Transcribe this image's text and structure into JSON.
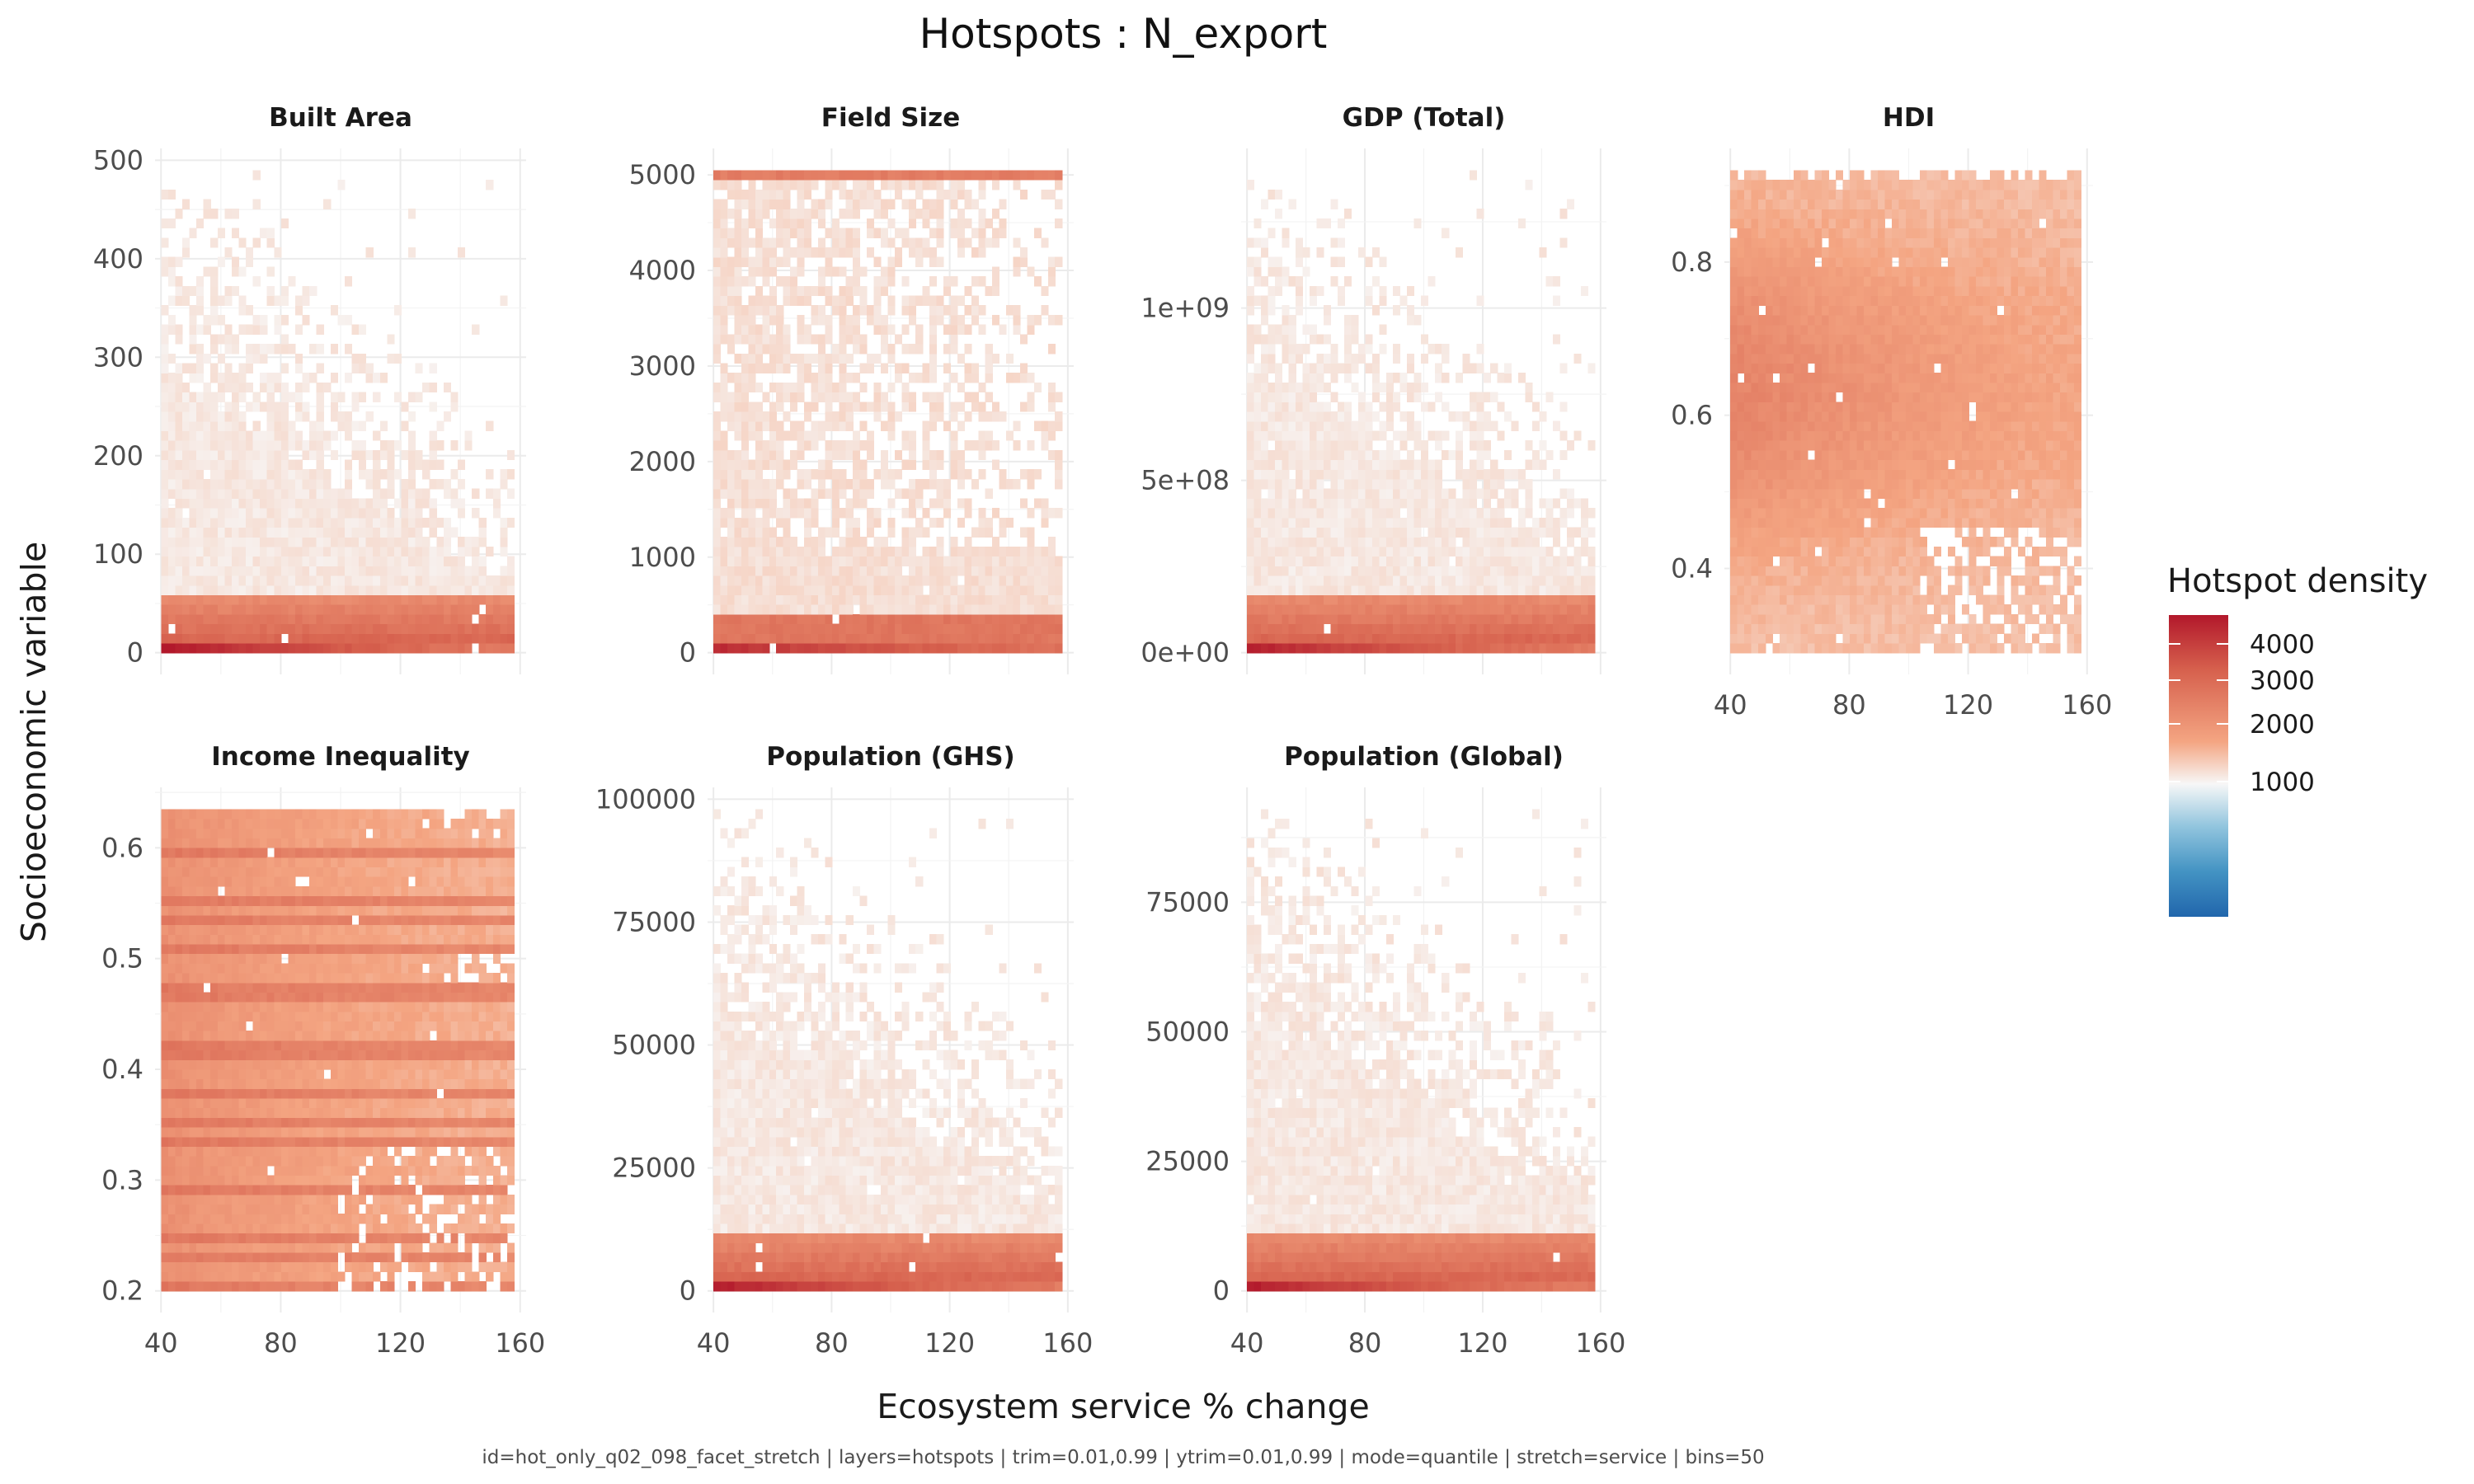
{
  "chart_data": {
    "type": "heatmap",
    "title": "Hotspots : N_export",
    "xlabel": "Ecosystem service % change",
    "ylabel": "Socioeconomic variable",
    "caption": "id=hot_only_q02_098_facet_stretch | layers=hotspots | trim=0.01,0.99 | ytrim=0.01,0.99 | mode=quantile | stretch=service | bins=50",
    "bins": 50,
    "x_range": [
      40,
      158
    ],
    "x_ticks": [
      "40",
      "80",
      "120",
      "160"
    ],
    "x_tick_values": [
      40,
      80,
      120,
      160
    ],
    "legend": {
      "title": "Hotspot density",
      "placement": "right",
      "ticks": [
        "4000",
        "3000",
        "2000",
        "1000"
      ],
      "tick_values": [
        4000,
        3000,
        2000,
        1000
      ],
      "colors": [
        "#b2182b",
        "#d6604d",
        "#f4a582",
        "#f7f7f7",
        "#92c5de",
        "#4393c3",
        "#2166ac"
      ]
    },
    "facets": [
      {
        "name": "Built Area",
        "ylim": [
          0,
          490
        ],
        "y_ticks": [
          "0",
          "100",
          "200",
          "300",
          "400",
          "500"
        ],
        "y_tick_values": [
          0,
          100,
          200,
          300,
          400,
          500
        ],
        "show_x": false,
        "peak_density": 4000
      },
      {
        "name": "Field Size",
        "ylim": [
          0,
          5050
        ],
        "y_ticks": [
          "0",
          "1000",
          "2000",
          "3000",
          "4000",
          "5000"
        ],
        "y_tick_values": [
          0,
          1000,
          2000,
          3000,
          4000,
          5000
        ],
        "show_x": false,
        "peak_density": 2500
      },
      {
        "name": "GDP (Total)",
        "ylim": [
          0,
          1400000000
        ],
        "y_ticks": [
          "0e+00",
          "5e+08",
          "1e+09"
        ],
        "y_tick_values": [
          0,
          500000000,
          1000000000
        ],
        "show_x": false,
        "peak_density": 3500
      },
      {
        "name": "HDI",
        "ylim": [
          0.29,
          0.92
        ],
        "y_ticks": [
          "0.4",
          "0.6",
          "0.8"
        ],
        "y_tick_values": [
          0.4,
          0.6,
          0.8
        ],
        "show_x": true,
        "peak_density": 900
      },
      {
        "name": "Income Inequality",
        "ylim": [
          0.2,
          0.635
        ],
        "y_ticks": [
          "0.2",
          "0.3",
          "0.4",
          "0.5",
          "0.6"
        ],
        "y_tick_values": [
          0.2,
          0.3,
          0.4,
          0.5,
          0.6
        ],
        "show_x": true,
        "peak_density": 900
      },
      {
        "name": "Population (GHS)",
        "ylim": [
          0,
          98000
        ],
        "y_ticks": [
          "0",
          "25000",
          "50000",
          "75000",
          "100000"
        ],
        "y_tick_values": [
          0,
          25000,
          50000,
          75000,
          100000
        ],
        "show_x": true,
        "peak_density": 3500
      },
      {
        "name": "Population (Global)",
        "ylim": [
          0,
          93000
        ],
        "y_ticks": [
          "0",
          "25000",
          "50000",
          "75000"
        ],
        "y_tick_values": [
          0,
          25000,
          50000,
          75000
        ],
        "show_x": true,
        "peak_density": 3500
      }
    ]
  }
}
